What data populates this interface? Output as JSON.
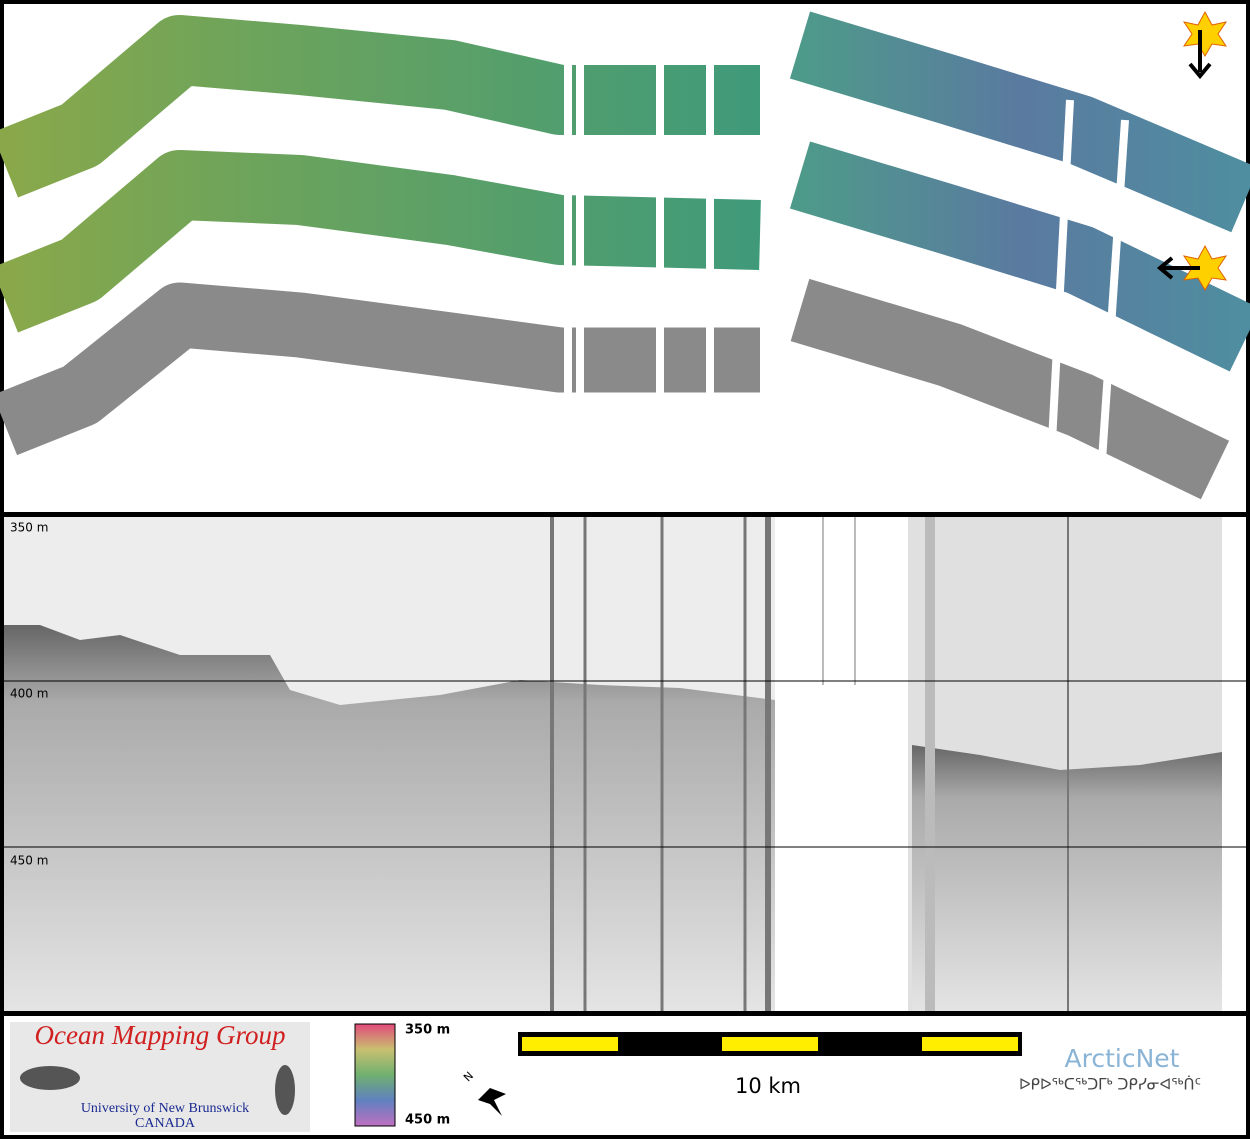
{
  "profile": {
    "depth_labels": [
      "350 m",
      "400 m",
      "450 m"
    ]
  },
  "footer": {
    "logo": {
      "title": "Ocean Mapping Group",
      "university": "University of New Brunswick",
      "country": "CANADA"
    },
    "colorbar": {
      "top_label": "350 m",
      "bottom_label": "450 m"
    },
    "scale_bar": {
      "label": "10 km"
    },
    "partner": {
      "name": "ArcticNet",
      "name_inuktitut": "ᐅᑭᐅᖅᑕᖅᑐᒥᒃ ᑐᑭᓯᓂᐊᖅᑏᑦ"
    }
  }
}
